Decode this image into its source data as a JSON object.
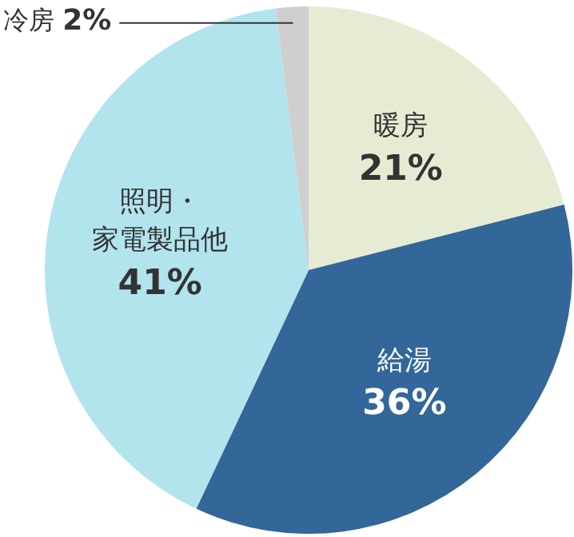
{
  "chart_data": {
    "type": "pie",
    "categories": [
      "暖房",
      "給湯",
      "照明・家電製品他",
      "冷房"
    ],
    "values": [
      21,
      36,
      41,
      2
    ],
    "colors": [
      "#e5ecd3",
      "#336699",
      "#b2e4ee",
      "#cfcfcf"
    ],
    "value_labels": [
      "21%",
      "36%",
      "41%",
      "2%"
    ],
    "legend": false
  }
}
